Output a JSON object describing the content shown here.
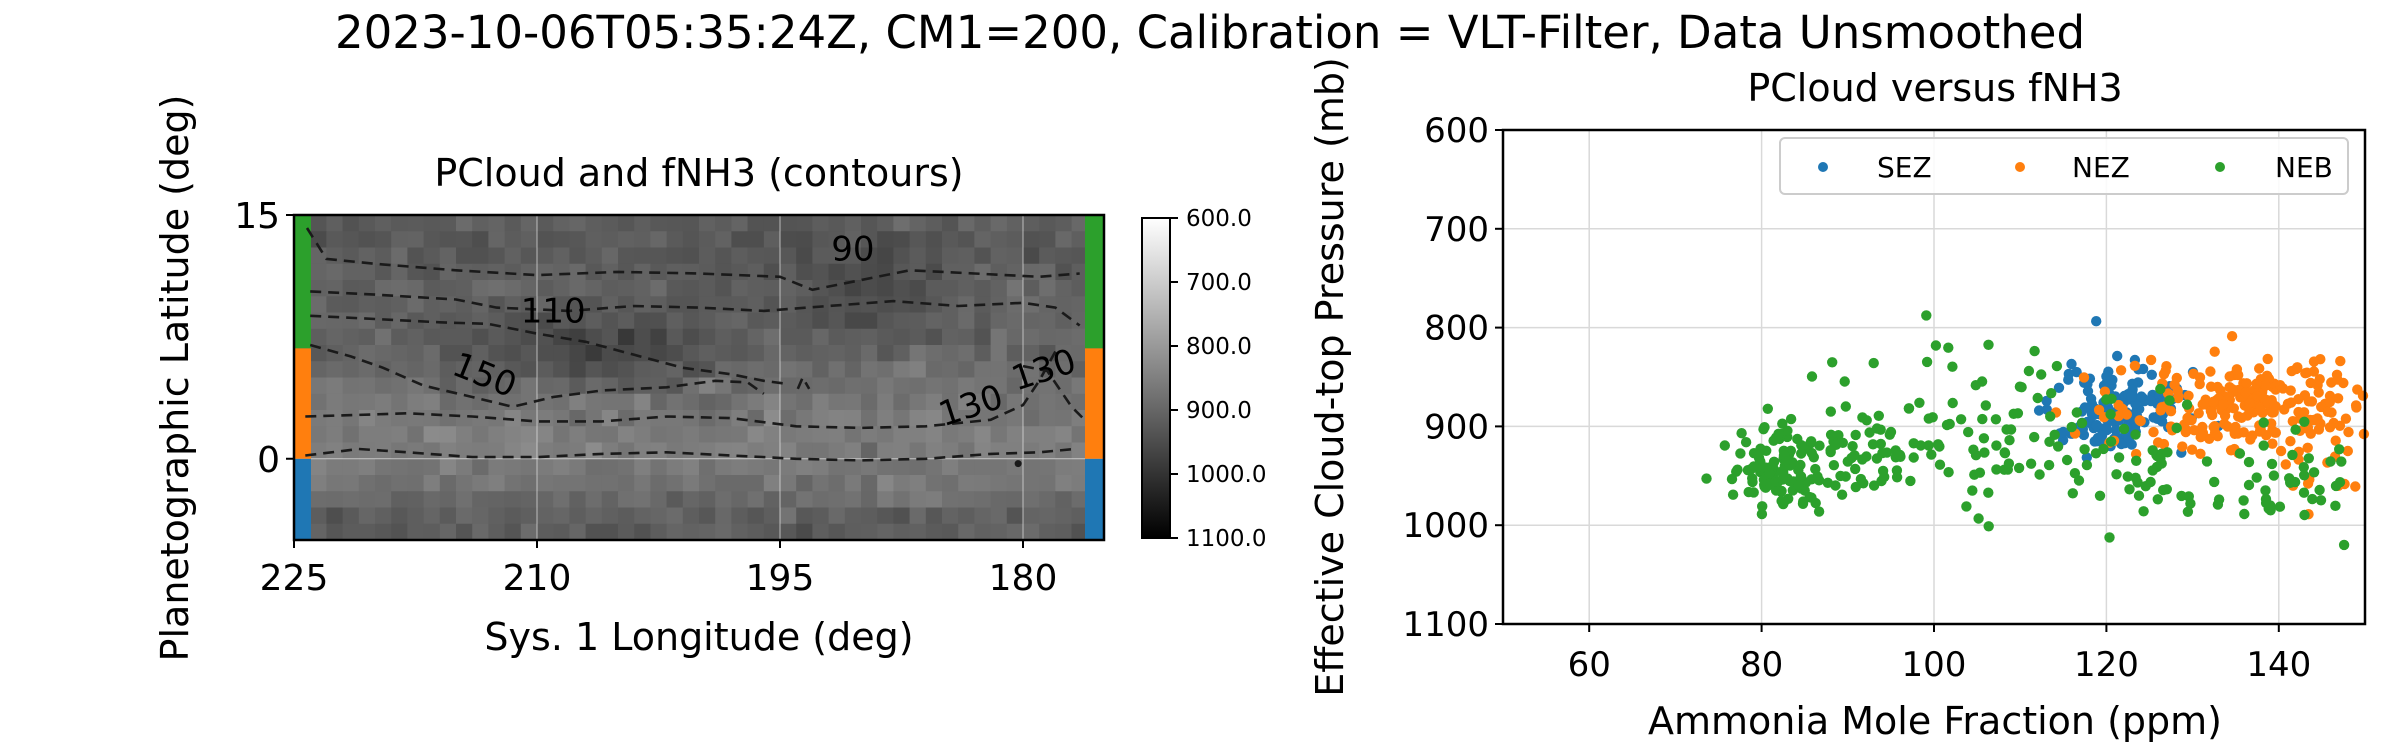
{
  "figure_title": "2023-10-06T05:35:24Z, CM1=200, Calibration = VLT-Filter, Data Unsmoothed",
  "colors": {
    "SEZ": "#1f77b4",
    "NEZ": "#ff7f0e",
    "NEB": "#2ca02c",
    "contour": "#1a1a1a",
    "grid": "#d9d9d9"
  },
  "chart_data": [
    {
      "type": "heatmap",
      "title": "PCloud and fNH3 (contours)",
      "xlabel": "Sys. 1 Longitude (deg)",
      "ylabel": "Planetographic Latitude (deg)",
      "xlim": [
        225,
        175
      ],
      "ylim": [
        -5,
        15
      ],
      "xticks": [
        225,
        210,
        195,
        180
      ],
      "yticks": [
        0,
        15
      ],
      "grid": true,
      "colormap": "gray (reversed)",
      "colorbar": {
        "range": [
          600,
          1100
        ],
        "ticks": [
          "600.0",
          "700.0",
          "800.0",
          "900.0",
          "1000.0",
          "1100.0"
        ],
        "direction": "white at 600 (top), black at 1100 (bottom)"
      },
      "band_markers": [
        {
          "name": "SEZ",
          "lat_range": [
            -5,
            0
          ]
        },
        {
          "name": "NEZ",
          "lat_range": [
            0,
            6.8
          ]
        },
        {
          "name": "NEB",
          "lat_range": [
            6.8,
            15
          ]
        }
      ],
      "contour_labels": [
        {
          "text": "90",
          "lon": 190.5,
          "lat": 12.2
        },
        {
          "text": "110",
          "lon": 209,
          "lat": 8.4
        },
        {
          "text": "150",
          "lon": 213.5,
          "lat": 4.5
        },
        {
          "text": "130",
          "lon": 183,
          "lat": 2.6
        },
        {
          "text": "130",
          "lon": 178.5,
          "lat": 4.8
        }
      ],
      "contours": [
        {
          "pts": [
            [
              224.2,
              14.2
            ],
            [
              223,
              12.3
            ],
            [
              220,
              12.0
            ],
            [
              215,
              11.6
            ],
            [
              210,
              11.3
            ],
            [
              205,
              11.5
            ],
            [
              200,
              11.4
            ],
            [
              195,
              11.2
            ],
            [
              193,
              10.4
            ],
            [
              191,
              10.8
            ],
            [
              187,
              11.6
            ],
            [
              183,
              11.4
            ],
            [
              179,
              11.2
            ],
            [
              176.5,
              11.4
            ]
          ]
        },
        {
          "pts": [
            [
              224,
              10.3
            ],
            [
              220,
              10.1
            ],
            [
              215,
              9.8
            ],
            [
              212.5,
              9.3
            ],
            [
              208,
              9.1
            ],
            [
              204,
              9.4
            ],
            [
              200,
              9.3
            ],
            [
              196,
              9.1
            ],
            [
              192,
              9.4
            ],
            [
              188,
              9.7
            ],
            [
              184,
              9.4
            ],
            [
              180,
              9.6
            ],
            [
              178,
              9.3
            ],
            [
              176.5,
              8.2
            ]
          ]
        },
        {
          "pts": [
            [
              224,
              8.8
            ],
            [
              220,
              8.6
            ],
            [
              216,
              8.4
            ],
            [
              213,
              8.3
            ],
            [
              210,
              7.7
            ],
            [
              207,
              7.2
            ],
            [
              204,
              6.4
            ],
            [
              201,
              5.6
            ],
            [
              198,
              5.2
            ],
            [
              196,
              4.8
            ],
            [
              194.5,
              4.6
            ]
          ]
        },
        {
          "pts": [
            [
              224,
              7.0
            ],
            [
              221.5,
              6.3
            ],
            [
              219.5,
              5.6
            ],
            [
              217,
              4.5
            ],
            [
              214,
              3.8
            ],
            [
              211.5,
              3.2
            ],
            [
              209,
              3.8
            ],
            [
              206,
              4.2
            ],
            [
              202,
              4.4
            ],
            [
              199,
              4.8
            ],
            [
              197,
              4.7
            ],
            [
              196,
              4.0
            ]
          ]
        },
        {
          "pts": [
            [
              224.3,
              2.6
            ],
            [
              221,
              2.7
            ],
            [
              218,
              2.8
            ],
            [
              214,
              2.6
            ],
            [
              210,
              2.3
            ],
            [
              206,
              2.3
            ],
            [
              202,
              2.6
            ],
            [
              198,
              2.5
            ],
            [
              194,
              2.0
            ],
            [
              190,
              1.9
            ],
            [
              186,
              2.0
            ],
            [
              182,
              2.4
            ],
            [
              180,
              3.3
            ],
            [
              179,
              4.8
            ],
            [
              178,
              6.6
            ]
          ]
        },
        {
          "pts": [
            [
              180,
              5.7
            ],
            [
              178.5,
              5.4
            ],
            [
              177,
              3.2
            ],
            [
              176.2,
              2.4
            ]
          ]
        },
        {
          "pts": [
            [
              224.3,
              0.2
            ],
            [
              221,
              0.6
            ],
            [
              218,
              0.4
            ],
            [
              214,
              0.1
            ],
            [
              210,
              0.1
            ],
            [
              206,
              0.3
            ],
            [
              202,
              0.4
            ],
            [
              198,
              0.2
            ],
            [
              194,
              0.0
            ],
            [
              190,
              -0.1
            ],
            [
              186,
              0.0
            ],
            [
              182,
              0.3
            ],
            [
              179,
              0.4
            ],
            [
              176.8,
              0.6
            ]
          ]
        },
        {
          "pts": [
            [
              193.9,
              4.3
            ],
            [
              193.6,
              5.0
            ],
            [
              193.2,
              4.3
            ]
          ]
        }
      ]
    },
    {
      "type": "scatter",
      "title": "PCloud versus fNH3",
      "xlabel": "Ammonia Mole Fraction (ppm)",
      "ylabel": "Effective Cloud-top Pressure (mb)",
      "xlim": [
        50,
        150
      ],
      "ylim": [
        1100,
        600
      ],
      "xticks": [
        60,
        80,
        100,
        120,
        140
      ],
      "yticks": [
        600,
        700,
        800,
        900,
        1000,
        1100
      ],
      "grid": true,
      "legend": {
        "placement": "upper-right",
        "entries": [
          "SEZ",
          "NEZ",
          "NEB"
        ]
      },
      "series": [
        {
          "name": "SEZ",
          "color": "#1f77b4",
          "clusters": [
            {
              "cx": 121,
              "cy": 882,
              "sx": 3.8,
              "sy": 22,
              "n": 150
            }
          ]
        },
        {
          "name": "NEZ",
          "color": "#ff7f0e",
          "clusters": [
            {
              "cx": 136,
              "cy": 880,
              "sx": 7.5,
              "sy": 25,
              "n": 240
            },
            {
              "cx": 146,
              "cy": 950,
              "sx": 3,
              "sy": 25,
              "n": 8
            }
          ]
        },
        {
          "name": "NEB",
          "color": "#2ca02c",
          "clusters": [
            {
              "cx": 82,
              "cy": 945,
              "sx": 2.8,
              "sy": 20,
              "n": 110
            },
            {
              "cx": 92,
              "cy": 920,
              "sx": 4.5,
              "sy": 25,
              "n": 60
            },
            {
              "cx": 108,
              "cy": 905,
              "sx": 7,
              "sy": 40,
              "n": 80
            },
            {
              "cx": 128,
              "cy": 945,
              "sx": 7,
              "sy": 30,
              "n": 60
            },
            {
              "cx": 143,
              "cy": 955,
              "sx": 4,
              "sy": 25,
              "n": 25
            }
          ]
        }
      ]
    }
  ]
}
